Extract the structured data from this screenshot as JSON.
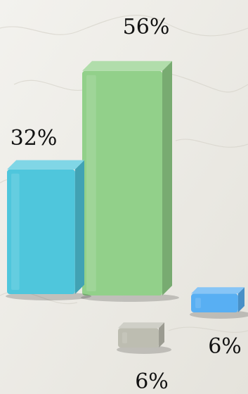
{
  "chart_data": {
    "type": "bar",
    "categories": [
      "",
      "",
      "",
      ""
    ],
    "values": [
      32,
      56,
      6,
      6
    ],
    "labels": [
      "32%",
      "56%",
      "6%",
      "6%"
    ],
    "colors": [
      "#4FC6DC",
      "#92D08A",
      "#BDBDB1",
      "#58AFF3"
    ],
    "value_unit": "%",
    "title": "",
    "xlabel": "",
    "ylabel": "",
    "ylim": [
      0,
      60
    ],
    "grid": false,
    "legend": "none"
  }
}
